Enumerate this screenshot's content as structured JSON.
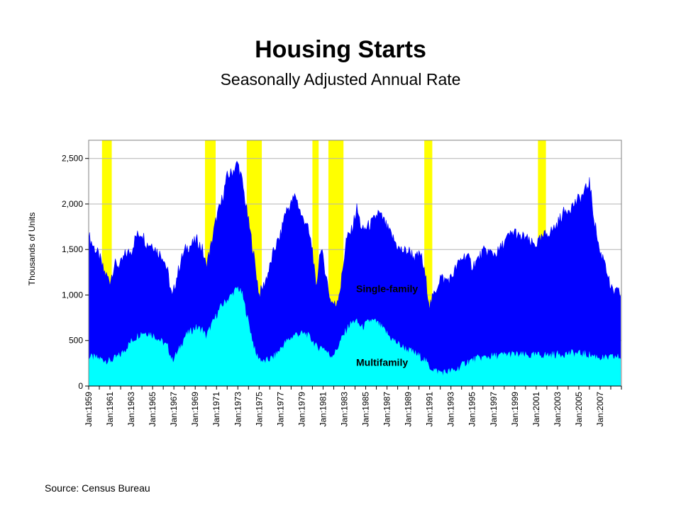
{
  "title": "Housing Starts",
  "subtitle": "Seasonally Adjusted Annual Rate",
  "source": "Source:  Census Bureau",
  "chart_data": {
    "type": "area",
    "stacked": true,
    "title": "Housing Starts",
    "subtitle": "Seasonally Adjusted Annual Rate",
    "xlabel": "",
    "ylabel": "Thousands of Units",
    "xlim": [
      "Jan:1959",
      "Dec:2008"
    ],
    "ylim": [
      0,
      2700
    ],
    "y_ticks": [
      0,
      500,
      1000,
      1500,
      2000,
      2500
    ],
    "y_tick_labels": [
      "0",
      "500",
      "1,000",
      "1,500",
      "2,000",
      "2,500"
    ],
    "x_tick_labels": [
      "Jan:1959",
      "Jan:1961",
      "Jan:1963",
      "Jan:1965",
      "Jan:1967",
      "Jan:1969",
      "Jan:1971",
      "Jan:1973",
      "Jan:1975",
      "Jan:1977",
      "Jan:1979",
      "Jan:1981",
      "Jan:1983",
      "Jan:1985",
      "Jan:1987",
      "Jan:1989",
      "Jan:1991",
      "Jan:1993",
      "Jan:1995",
      "Jan:1997",
      "Jan:1999",
      "Jan:2001",
      "Jan:2003",
      "Jan:2005",
      "Jan:2007"
    ],
    "grid": "horizontal",
    "total_starts": [
      [
        "1959-01",
        1650
      ],
      [
        "1959-06",
        1540
      ],
      [
        "1960-01",
        1420
      ],
      [
        "1960-06",
        1260
      ],
      [
        "1961-01",
        1150
      ],
      [
        "1961-06",
        1330
      ],
      [
        "1962-01",
        1330
      ],
      [
        "1962-06",
        1440
      ],
      [
        "1963-01",
        1480
      ],
      [
        "1963-06",
        1640
      ],
      [
        "1964-01",
        1690
      ],
      [
        "1964-06",
        1560
      ],
      [
        "1965-01",
        1560
      ],
      [
        "1965-06",
        1480
      ],
      [
        "1966-01",
        1420
      ],
      [
        "1966-06",
        1250
      ],
      [
        "1966-11",
        960
      ],
      [
        "1967-03",
        1150
      ],
      [
        "1967-09",
        1380
      ],
      [
        "1968-03",
        1520
      ],
      [
        "1968-09",
        1550
      ],
      [
        "1969-03",
        1600
      ],
      [
        "1969-09",
        1500
      ],
      [
        "1970-01",
        1320
      ],
      [
        "1970-06",
        1500
      ],
      [
        "1971-01",
        1850
      ],
      [
        "1971-06",
        2000
      ],
      [
        "1972-01",
        2300
      ],
      [
        "1972-06",
        2340
      ],
      [
        "1973-01",
        2450
      ],
      [
        "1973-06",
        2240
      ],
      [
        "1974-01",
        1800
      ],
      [
        "1974-06",
        1500
      ],
      [
        "1975-01",
        1000
      ],
      [
        "1975-06",
        1100
      ],
      [
        "1976-01",
        1300
      ],
      [
        "1976-06",
        1500
      ],
      [
        "1977-01",
        1650
      ],
      [
        "1977-06",
        1900
      ],
      [
        "1978-01",
        2000
      ],
      [
        "1978-06",
        2100
      ],
      [
        "1979-01",
        1850
      ],
      [
        "1979-06",
        1800
      ],
      [
        "1980-01",
        1500
      ],
      [
        "1980-05",
        1050
      ],
      [
        "1980-10",
        1520
      ],
      [
        "1981-03",
        1300
      ],
      [
        "1981-09",
        950
      ],
      [
        "1982-03",
        880
      ],
      [
        "1982-09",
        1100
      ],
      [
        "1983-03",
        1600
      ],
      [
        "1983-09",
        1700
      ],
      [
        "1984-03",
        1950
      ],
      [
        "1984-09",
        1700
      ],
      [
        "1985-03",
        1750
      ],
      [
        "1985-09",
        1800
      ],
      [
        "1986-03",
        1900
      ],
      [
        "1986-09",
        1820
      ],
      [
        "1987-03",
        1700
      ],
      [
        "1987-09",
        1600
      ],
      [
        "1988-03",
        1500
      ],
      [
        "1988-09",
        1480
      ],
      [
        "1989-03",
        1480
      ],
      [
        "1989-09",
        1400
      ],
      [
        "1990-03",
        1450
      ],
      [
        "1990-09",
        1150
      ],
      [
        "1991-01",
        880
      ],
      [
        "1991-06",
        1000
      ],
      [
        "1992-01",
        1200
      ],
      [
        "1992-06",
        1160
      ],
      [
        "1993-01",
        1180
      ],
      [
        "1993-06",
        1280
      ],
      [
        "1994-01",
        1400
      ],
      [
        "1994-06",
        1440
      ],
      [
        "1995-01",
        1320
      ],
      [
        "1995-06",
        1370
      ],
      [
        "1996-01",
        1470
      ],
      [
        "1996-06",
        1480
      ],
      [
        "1997-01",
        1450
      ],
      [
        "1997-06",
        1470
      ],
      [
        "1998-01",
        1570
      ],
      [
        "1998-06",
        1640
      ],
      [
        "1999-01",
        1700
      ],
      [
        "1999-06",
        1620
      ],
      [
        "2000-01",
        1640
      ],
      [
        "2000-06",
        1560
      ],
      [
        "2001-01",
        1560
      ],
      [
        "2001-06",
        1600
      ],
      [
        "2002-01",
        1680
      ],
      [
        "2002-06",
        1700
      ],
      [
        "2003-01",
        1780
      ],
      [
        "2003-06",
        1880
      ],
      [
        "2004-01",
        1950
      ],
      [
        "2004-06",
        1980
      ],
      [
        "2005-01",
        2050
      ],
      [
        "2005-06",
        2100
      ],
      [
        "2006-01",
        2240
      ],
      [
        "2006-06",
        1850
      ],
      [
        "2007-01",
        1450
      ],
      [
        "2007-06",
        1400
      ],
      [
        "2008-01",
        1050
      ],
      [
        "2008-06",
        1030
      ],
      [
        "2008-12",
        1020
      ]
    ],
    "multifamily": [
      [
        "1959-01",
        320
      ],
      [
        "1960-01",
        300
      ],
      [
        "1961-01",
        270
      ],
      [
        "1962-01",
        340
      ],
      [
        "1963-01",
        490
      ],
      [
        "1964-01",
        590
      ],
      [
        "1964-09",
        580
      ],
      [
        "1965-06",
        530
      ],
      [
        "1966-06",
        430
      ],
      [
        "1966-11",
        280
      ],
      [
        "1967-06",
        380
      ],
      [
        "1968-01",
        540
      ],
      [
        "1969-01",
        640
      ],
      [
        "1969-09",
        620
      ],
      [
        "1970-01",
        540
      ],
      [
        "1970-09",
        700
      ],
      [
        "1971-06",
        870
      ],
      [
        "1972-06",
        1000
      ],
      [
        "1973-01",
        1080
      ],
      [
        "1973-06",
        1000
      ],
      [
        "1974-01",
        700
      ],
      [
        "1974-09",
        350
      ],
      [
        "1975-06",
        260
      ],
      [
        "1976-06",
        320
      ],
      [
        "1977-06",
        470
      ],
      [
        "1978-06",
        570
      ],
      [
        "1979-06",
        570
      ],
      [
        "1980-01",
        500
      ],
      [
        "1980-06",
        420
      ],
      [
        "1981-01",
        430
      ],
      [
        "1981-09",
        330
      ],
      [
        "1982-03",
        370
      ],
      [
        "1982-09",
        500
      ],
      [
        "1983-06",
        660
      ],
      [
        "1984-01",
        720
      ],
      [
        "1984-09",
        640
      ],
      [
        "1985-06",
        720
      ],
      [
        "1986-01",
        700
      ],
      [
        "1986-09",
        620
      ],
      [
        "1987-06",
        520
      ],
      [
        "1988-06",
        430
      ],
      [
        "1989-06",
        370
      ],
      [
        "1990-06",
        300
      ],
      [
        "1991-01",
        210
      ],
      [
        "1991-09",
        160
      ],
      [
        "1992-06",
        150
      ],
      [
        "1993-06",
        170
      ],
      [
        "1994-06",
        260
      ],
      [
        "1995-06",
        300
      ],
      [
        "1996-06",
        320
      ],
      [
        "1997-06",
        330
      ],
      [
        "1998-06",
        350
      ],
      [
        "1999-06",
        340
      ],
      [
        "2000-06",
        330
      ],
      [
        "2001-06",
        340
      ],
      [
        "2002-06",
        340
      ],
      [
        "2003-06",
        350
      ],
      [
        "2004-06",
        360
      ],
      [
        "2005-06",
        350
      ],
      [
        "2006-06",
        330
      ],
      [
        "2007-06",
        300
      ],
      [
        "2008-06",
        320
      ],
      [
        "2008-12",
        310
      ]
    ],
    "recessions": [
      [
        "1960-04",
        "1961-02"
      ],
      [
        "1969-12",
        "1970-11"
      ],
      [
        "1973-11",
        "1975-03"
      ],
      [
        "1980-01",
        "1980-07"
      ],
      [
        "1981-07",
        "1982-11"
      ],
      [
        "1990-07",
        "1991-03"
      ],
      [
        "2001-03",
        "2001-11"
      ]
    ],
    "series_labels": [
      "Single-family",
      "Multifamily"
    ],
    "colors": {
      "single_family": "#0000ff",
      "multifamily": "#00ffff",
      "recession": "#ffff00",
      "grid": "#b3b3b3",
      "axis": "#808080"
    }
  }
}
